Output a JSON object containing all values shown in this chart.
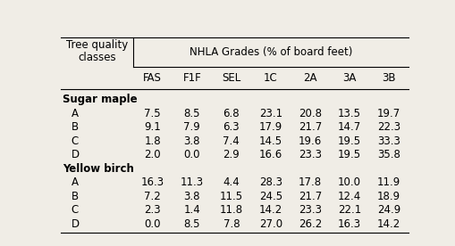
{
  "title": "NHLA Grades (% of board feet)",
  "col_header_row1": "Tree quality",
  "col_header_row2": "classes",
  "columns": [
    "FAS",
    "F1F",
    "SEL",
    "1C",
    "2A",
    "3A",
    "3B"
  ],
  "sections": [
    {
      "name": "Sugar maple",
      "rows": [
        {
          "label": "A",
          "values": [
            7.5,
            8.5,
            6.8,
            23.1,
            20.8,
            13.5,
            19.7
          ]
        },
        {
          "label": "B",
          "values": [
            9.1,
            7.9,
            6.3,
            17.9,
            21.7,
            14.7,
            22.3
          ]
        },
        {
          "label": "C",
          "values": [
            1.8,
            3.8,
            7.4,
            14.5,
            19.6,
            19.5,
            33.3
          ]
        },
        {
          "label": "D",
          "values": [
            2.0,
            0.0,
            2.9,
            16.6,
            23.3,
            19.5,
            35.8
          ]
        }
      ]
    },
    {
      "name": "Yellow birch",
      "rows": [
        {
          "label": "A",
          "values": [
            16.3,
            11.3,
            4.4,
            28.3,
            17.8,
            10.0,
            11.9
          ]
        },
        {
          "label": "B",
          "values": [
            7.2,
            3.8,
            11.5,
            24.5,
            21.7,
            12.4,
            18.9
          ]
        },
        {
          "label": "C",
          "values": [
            2.3,
            1.4,
            11.8,
            14.2,
            23.3,
            22.1,
            24.9
          ]
        },
        {
          "label": "D",
          "values": [
            0.0,
            8.5,
            7.8,
            27.0,
            26.2,
            16.3,
            14.2
          ]
        }
      ]
    }
  ],
  "bg_color": "#f0ede6",
  "text_color": "#000000",
  "font_size": 8.5,
  "header_font_size": 8.5
}
